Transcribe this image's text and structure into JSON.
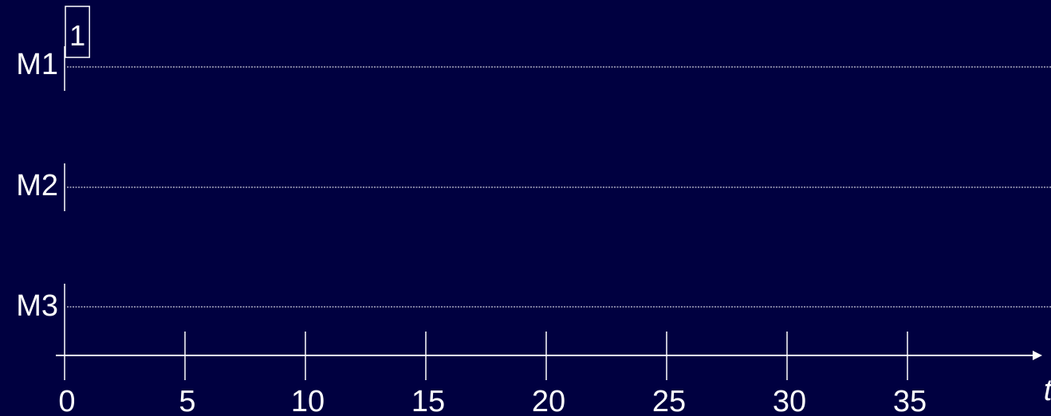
{
  "chart_data": {
    "type": "gantt",
    "machines": [
      {
        "label": "M1"
      },
      {
        "label": "M2"
      },
      {
        "label": "M3"
      }
    ],
    "jobs": [
      {
        "label": "1",
        "machine": "M1",
        "start": 0,
        "end": 1
      }
    ],
    "x_axis": {
      "label": "t",
      "range": [
        0,
        40
      ],
      "ticks": [
        0,
        5,
        10,
        15,
        20,
        25,
        30,
        35
      ]
    },
    "colors": {
      "background": "#000040",
      "foreground": "#ffffff"
    }
  }
}
